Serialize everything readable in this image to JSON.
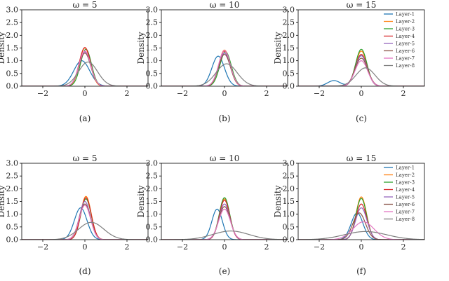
{
  "layer_colors": [
    "#1f77b4",
    "#ff7f0e",
    "#2ca02c",
    "#d62728",
    "#9467bd",
    "#8c564b",
    "#e377c2",
    "#7f7f7f"
  ],
  "chart_data": [
    {
      "type": "line",
      "title": "ω = 5",
      "caption": "(a)",
      "ylabel": "Density",
      "xlim": [
        -3,
        3
      ],
      "ylim": [
        0,
        3
      ],
      "xticks": [
        "−2",
        "0",
        "2"
      ],
      "yticks": [
        "0.0",
        "0.5",
        "1.0",
        "1.5",
        "2.0",
        "2.5",
        "3.0"
      ],
      "legend": false,
      "series": [
        {
          "name": "Layer-1",
          "mu": -0.15,
          "sigma": 0.38,
          "peak": 1.0
        },
        {
          "name": "Layer-2",
          "mu": 0.0,
          "sigma": 0.26,
          "peak": 1.5
        },
        {
          "name": "Layer-3",
          "mu": 0.05,
          "sigma": 0.26,
          "peak": 1.45
        },
        {
          "name": "Layer-4",
          "mu": 0.0,
          "sigma": 0.27,
          "peak": 1.52
        },
        {
          "name": "Layer-5",
          "mu": 0.0,
          "sigma": 0.28,
          "peak": 1.35
        },
        {
          "name": "Layer-6",
          "mu": 0.0,
          "sigma": 0.28,
          "peak": 1.3
        },
        {
          "name": "Layer-7",
          "mu": 0.0,
          "sigma": 0.28,
          "peak": 1.38
        },
        {
          "name": "Layer-8",
          "mu": 0.15,
          "sigma": 0.45,
          "peak": 0.95
        }
      ]
    },
    {
      "type": "line",
      "title": "ω = 10",
      "caption": "(b)",
      "ylabel": "Density",
      "xlim": [
        -3,
        3
      ],
      "ylim": [
        0,
        3
      ],
      "xticks": [
        "−2",
        "0",
        "2"
      ],
      "yticks": [
        "0.0",
        "0.5",
        "1.0",
        "1.5",
        "2.0",
        "2.5",
        "3.0"
      ],
      "legend": false,
      "series": [
        {
          "name": "Layer-1",
          "mu": -0.3,
          "sigma": 0.3,
          "peak": 1.18
        },
        {
          "name": "Layer-2",
          "mu": 0.0,
          "sigma": 0.27,
          "peak": 1.42
        },
        {
          "name": "Layer-3",
          "mu": 0.05,
          "sigma": 0.27,
          "peak": 1.35
        },
        {
          "name": "Layer-4",
          "mu": 0.0,
          "sigma": 0.27,
          "peak": 1.38
        },
        {
          "name": "Layer-5",
          "mu": 0.0,
          "sigma": 0.28,
          "peak": 1.3
        },
        {
          "name": "Layer-6",
          "mu": 0.0,
          "sigma": 0.28,
          "peak": 1.25
        },
        {
          "name": "Layer-7",
          "mu": 0.0,
          "sigma": 0.28,
          "peak": 1.4
        },
        {
          "name": "Layer-8",
          "mu": 0.1,
          "sigma": 0.5,
          "peak": 0.88
        }
      ]
    },
    {
      "type": "line",
      "title": "ω = 15",
      "caption": "(c)",
      "ylabel": "Density",
      "xlim": [
        -3,
        3
      ],
      "ylim": [
        0,
        3
      ],
      "xticks": [
        "−2",
        "0",
        "2"
      ],
      "yticks": [
        "0.0",
        "0.5",
        "1.0",
        "1.5",
        "2.0",
        "2.5",
        "3.0"
      ],
      "legend": true,
      "series": [
        {
          "name": "Layer-1",
          "mu": 0.0,
          "sigma": 0.28,
          "peak": 1.2,
          "bump": {
            "mu": -1.3,
            "sigma": 0.3,
            "peak": 0.22
          }
        },
        {
          "name": "Layer-2",
          "mu": 0.0,
          "sigma": 0.27,
          "peak": 1.38
        },
        {
          "name": "Layer-3",
          "mu": 0.0,
          "sigma": 0.27,
          "peak": 1.45
        },
        {
          "name": "Layer-4",
          "mu": 0.0,
          "sigma": 0.28,
          "peak": 1.25
        },
        {
          "name": "Layer-5",
          "mu": 0.0,
          "sigma": 0.28,
          "peak": 1.2
        },
        {
          "name": "Layer-6",
          "mu": 0.0,
          "sigma": 0.3,
          "peak": 1.1
        },
        {
          "name": "Layer-7",
          "mu": 0.0,
          "sigma": 0.3,
          "peak": 1.0
        },
        {
          "name": "Layer-8",
          "mu": 0.2,
          "sigma": 0.45,
          "peak": 0.72
        }
      ]
    },
    {
      "type": "line",
      "title": "ω = 5",
      "caption": "(d)",
      "ylabel": "Density",
      "xlim": [
        -3,
        3
      ],
      "ylim": [
        0,
        3
      ],
      "xticks": [
        "−2",
        "0",
        "2"
      ],
      "yticks": [
        "0.0",
        "0.5",
        "1.0",
        "1.5",
        "2.0",
        "2.5",
        "3.0"
      ],
      "legend": false,
      "series": [
        {
          "name": "Layer-1",
          "mu": -0.2,
          "sigma": 0.3,
          "peak": 1.25
        },
        {
          "name": "Layer-2",
          "mu": 0.05,
          "sigma": 0.25,
          "peak": 1.7
        },
        {
          "name": "Layer-3",
          "mu": 0.05,
          "sigma": 0.25,
          "peak": 1.6
        },
        {
          "name": "Layer-4",
          "mu": 0.05,
          "sigma": 0.25,
          "peak": 1.65
        },
        {
          "name": "Layer-5",
          "mu": 0.0,
          "sigma": 0.26,
          "peak": 1.5
        },
        {
          "name": "Layer-6",
          "mu": 0.0,
          "sigma": 0.27,
          "peak": 1.4
        },
        {
          "name": "Layer-7",
          "mu": 0.0,
          "sigma": 0.27,
          "peak": 1.35
        },
        {
          "name": "Layer-8",
          "mu": 0.3,
          "sigma": 0.6,
          "peak": 0.68
        }
      ]
    },
    {
      "type": "line",
      "title": "ω = 10",
      "caption": "(e)",
      "ylabel": "Density",
      "xlim": [
        -3,
        3
      ],
      "ylim": [
        0,
        3
      ],
      "xticks": [
        "−2",
        "0",
        "2"
      ],
      "yticks": [
        "0.0",
        "0.5",
        "1.0",
        "1.5",
        "2.0",
        "2.5",
        "3.0"
      ],
      "legend": false,
      "series": [
        {
          "name": "Layer-1",
          "mu": -0.35,
          "sigma": 0.25,
          "peak": 1.2
        },
        {
          "name": "Layer-2",
          "mu": 0.0,
          "sigma": 0.25,
          "peak": 1.6
        },
        {
          "name": "Layer-3",
          "mu": 0.0,
          "sigma": 0.25,
          "peak": 1.65
        },
        {
          "name": "Layer-4",
          "mu": 0.0,
          "sigma": 0.25,
          "peak": 1.55
        },
        {
          "name": "Layer-5",
          "mu": 0.0,
          "sigma": 0.26,
          "peak": 1.4
        },
        {
          "name": "Layer-6",
          "mu": 0.0,
          "sigma": 0.27,
          "peak": 1.3
        },
        {
          "name": "Layer-7",
          "mu": 0.0,
          "sigma": 0.28,
          "peak": 1.2
        },
        {
          "name": "Layer-8",
          "mu": 0.3,
          "sigma": 0.85,
          "peak": 0.34
        }
      ]
    },
    {
      "type": "line",
      "title": "ω = 15",
      "caption": "(f)",
      "ylabel": "Density",
      "xlim": [
        -3,
        3
      ],
      "ylim": [
        0,
        3
      ],
      "xticks": [
        "−2",
        "0",
        "2"
      ],
      "yticks": [
        "0.0",
        "0.5",
        "1.0",
        "1.5",
        "2.0",
        "2.5",
        "3.0"
      ],
      "legend": true,
      "series": [
        {
          "name": "Layer-1",
          "mu": -0.2,
          "sigma": 0.28,
          "peak": 1.05
        },
        {
          "name": "Layer-2",
          "mu": 0.0,
          "sigma": 0.25,
          "peak": 1.68
        },
        {
          "name": "Layer-3",
          "mu": 0.0,
          "sigma": 0.25,
          "peak": 1.62
        },
        {
          "name": "Layer-4",
          "mu": 0.0,
          "sigma": 0.26,
          "peak": 1.4
        },
        {
          "name": "Layer-5",
          "mu": 0.0,
          "sigma": 0.27,
          "peak": 1.25
        },
        {
          "name": "Layer-6",
          "mu": -0.1,
          "sigma": 0.3,
          "peak": 1.05
        },
        {
          "name": "Layer-7",
          "mu": 0.1,
          "sigma": 0.5,
          "peak": 0.7
        },
        {
          "name": "Layer-8",
          "mu": 0.2,
          "sigma": 1.0,
          "peak": 0.32
        }
      ]
    }
  ]
}
